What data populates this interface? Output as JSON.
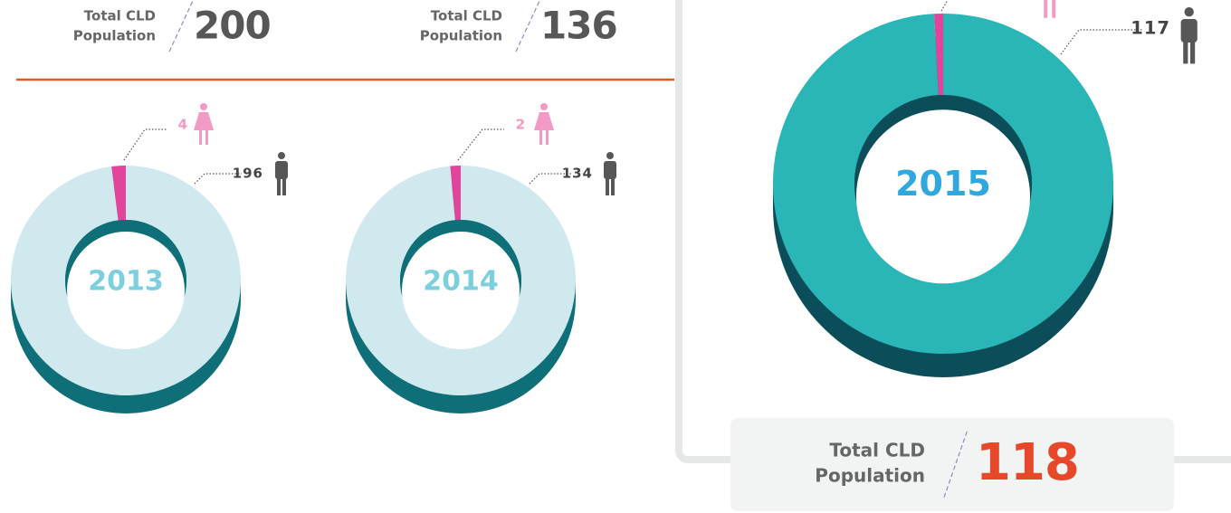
{
  "chart_data": [
    {
      "type": "pie",
      "title": "2013",
      "values": [
        4,
        196
      ],
      "colors": [
        "#e2439b",
        "#cfe9ee"
      ],
      "total_label": [
        "Total CLD",
        "Population"
      ],
      "total": 200
    },
    {
      "type": "pie",
      "title": "2014",
      "values": [
        2,
        134
      ],
      "colors": [
        "#e2439b",
        "#cfe9ee"
      ],
      "total_label": [
        "Total CLD",
        "Population"
      ],
      "total": 136
    },
    {
      "type": "pie",
      "title": "2015",
      "values": [
        1,
        117
      ],
      "colors": [
        "#e2439b",
        "#2ab6b6"
      ],
      "total_label": [
        "Total CLD",
        "Population"
      ],
      "total": 118
    }
  ]
}
